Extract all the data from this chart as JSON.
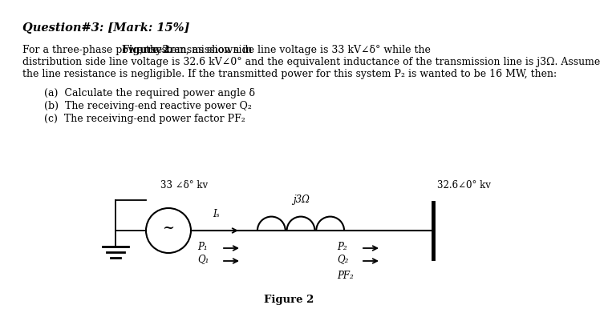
{
  "background_color": "#ffffff",
  "title": "Question#3: [Mark: 15%]",
  "line1_pre": "For a three-phase power system, as shown in ",
  "line1_bold": "Figure 2",
  "line1_post": ", the transmission side line voltage is 33 kV∠δ° while the",
  "line2": "distribution side line voltage is 32.6 kV∠0° and the equivalent inductance of the transmission line is j3Ω. Assume",
  "line3": "the line resistance is negligible. If the transmitted power for this system P₂ is wanted to be 16 MW, then:",
  "item_a": "(a)  Calculate the required power angle δ",
  "item_b": "(b)  The receiving-end reactive power Q₂",
  "item_c": "(c)  The receiving-end power factor PF₂",
  "fig_label": "Figure 2",
  "src_label": "33 ∠δ° kv",
  "load_label": "32.6∠0° kv",
  "ind_label": "j3Ω",
  "is_label": "Iₛ",
  "p1_label": "P₁",
  "q1_label": "Q₁",
  "p2_label": "P₂",
  "q2_label": "Q₂",
  "pf2_label": "PF₂"
}
